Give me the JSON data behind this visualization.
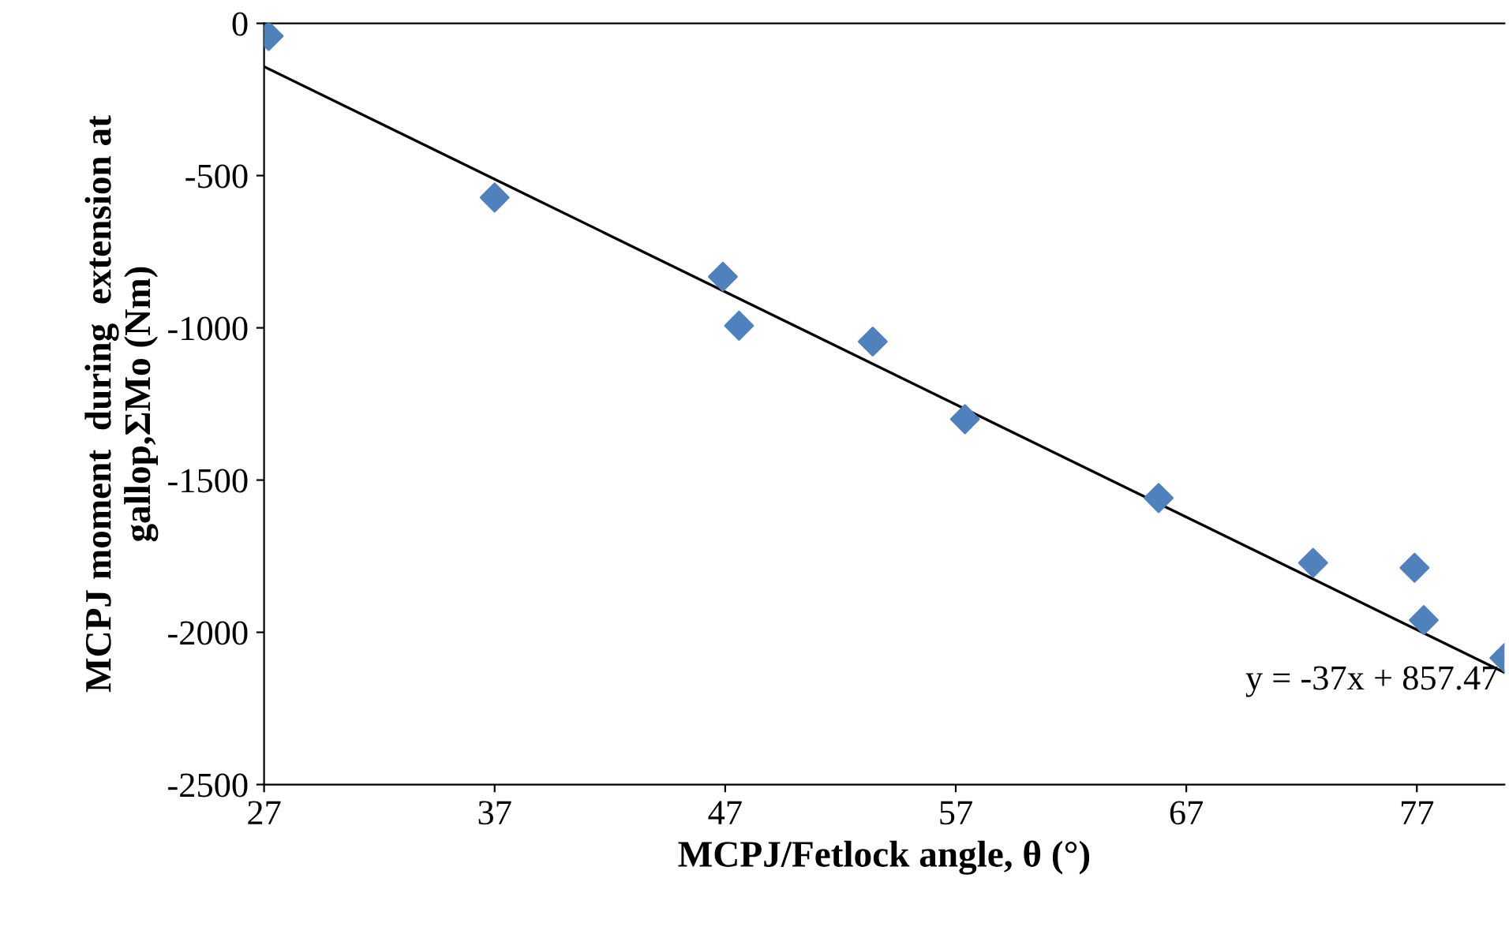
{
  "chart_data": {
    "type": "scatter",
    "xlabel": "MCPJ/Fetlock angle, θ (°)",
    "ylabel": "MCPJ moment  during  extension at\ngallop,ΣMo (Nm)",
    "series": [
      {
        "color": "#4f81bd",
        "marker": "diamond",
        "x": [
          27.2,
          37,
          46.9,
          47.6,
          53.4,
          57.4,
          65.8,
          72.5,
          76.9,
          77.3,
          80.8
        ],
        "values": [
          -42,
          -572,
          -832,
          -993,
          -1045,
          -1300,
          -1559,
          -1772,
          -1788,
          -1960,
          -2084
        ]
      },
      {
        "type": "line",
        "color": "#000000",
        "marker": "none",
        "x": [
          27,
          80.8
        ],
        "values": [
          -142,
          -2132
        ]
      }
    ],
    "annotations": [
      "y = -37x + 857.47"
    ],
    "xlim": [
      27,
      80.8
    ],
    "xticks": [
      27,
      37,
      47,
      57,
      67,
      77
    ],
    "ylim": [
      -2500,
      0
    ],
    "yticks": [
      -2500,
      -2000,
      -1500,
      -1000,
      -500,
      0
    ],
    "grid": false,
    "legend": false
  }
}
